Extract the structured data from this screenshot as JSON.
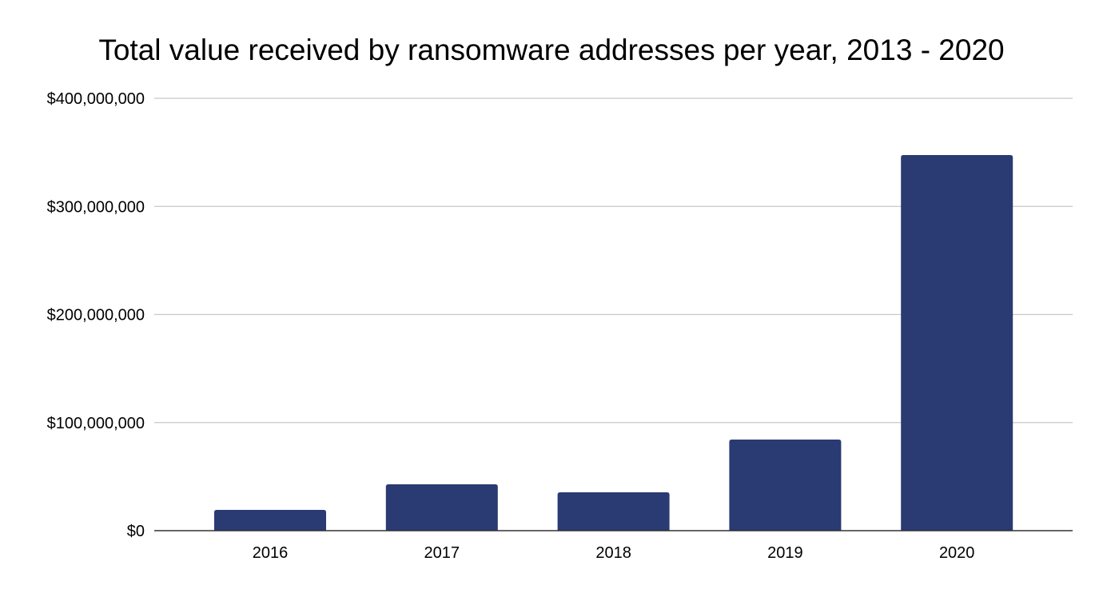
{
  "chart_data": {
    "type": "bar",
    "title": "Total value received by ransomware addresses per year, 2013 - 2020",
    "xlabel": "",
    "ylabel": "",
    "categories": [
      "2016",
      "2017",
      "2018",
      "2019",
      "2020"
    ],
    "values": [
      19200000,
      42900000,
      35500000,
      84300000,
      347500000
    ],
    "ylim": [
      0,
      400000000
    ],
    "yticks": [
      0,
      100000000,
      200000000,
      300000000,
      400000000
    ],
    "ytick_labels": [
      "$0",
      "$100,000,000",
      "$200,000,000",
      "$300,000,000",
      "$400,000,000"
    ],
    "grid": true,
    "bar_color": "#2a3a73",
    "legend": "none"
  }
}
